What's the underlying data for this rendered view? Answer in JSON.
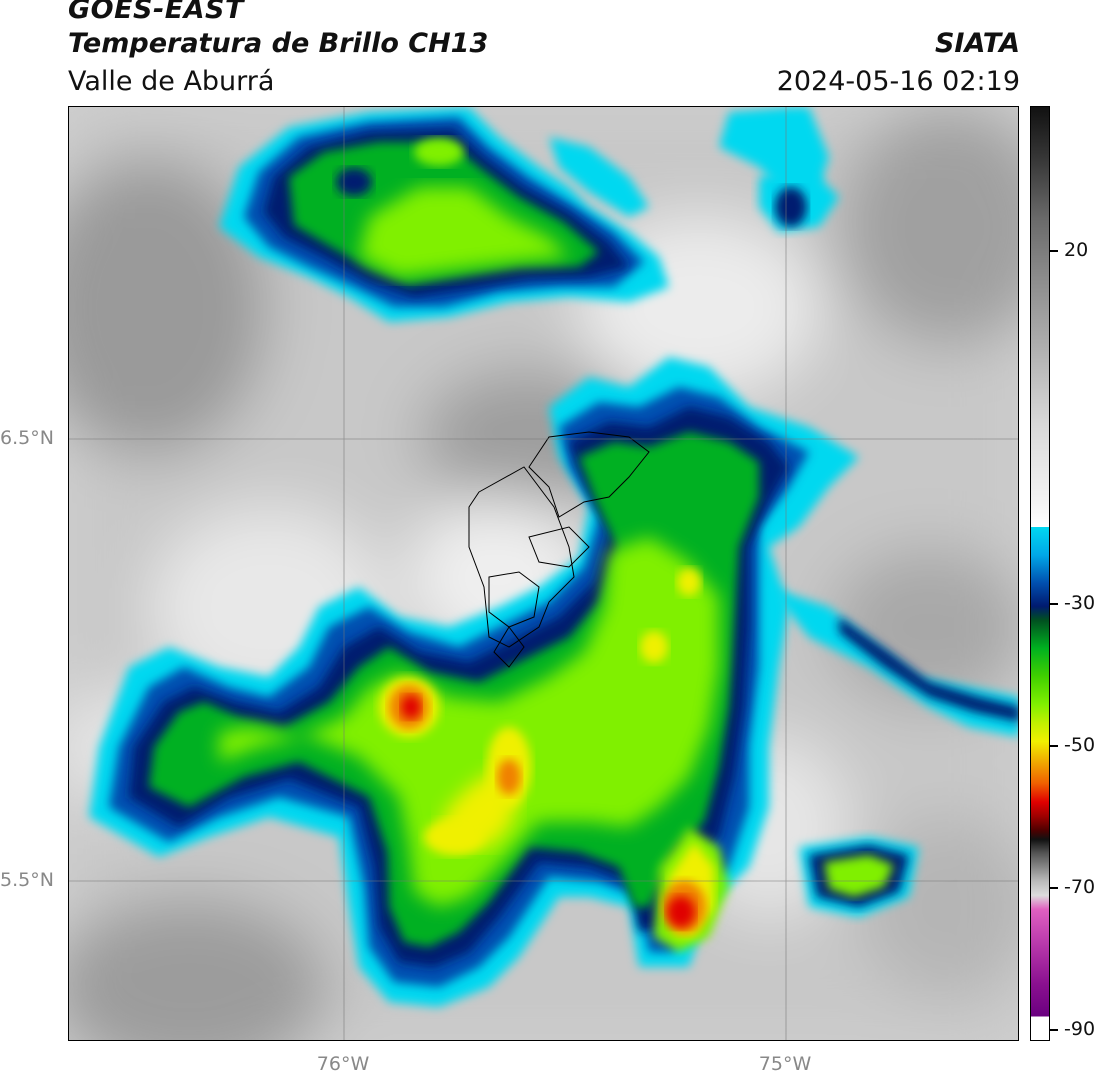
{
  "header": {
    "satellite": "GOES-EAST",
    "product": "Temperatura de Brillo CH13",
    "region": "Valle de Aburrá",
    "organization": "SIATA",
    "datetime": "2024-05-16 02:19"
  },
  "axes": {
    "lat_labels": [
      "6.5°N",
      "5.5°N"
    ],
    "lon_labels": [
      "76°W",
      "75°W"
    ]
  },
  "colorbar": {
    "tick_labels": [
      "20",
      "-30",
      "-50",
      "-70",
      "-90"
    ],
    "colors": {
      "warm_black": "#111111",
      "warm_gray": "#8a8a8a",
      "neutral": "#f2f2f2",
      "cyan": "#00d8f0",
      "blue": "#0050b0",
      "navy": "#001a70",
      "green": "#00b020",
      "lime": "#80f000",
      "yellow": "#f0f000",
      "orange": "#f08000",
      "red": "#e00000",
      "dark_red": "#500000",
      "pink": "#e060c0",
      "purple": "#8a1090"
    }
  }
}
